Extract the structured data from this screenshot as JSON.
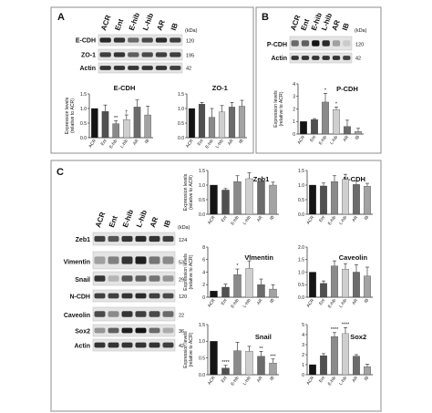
{
  "blot_lanes": [
    "ACR",
    "Ent",
    "E-hib",
    "L-hib",
    "AR",
    "IB"
  ],
  "kda_unit": "(kDa)",
  "ylabel": "Expression levels (relative to ACR)",
  "bar_colors": [
    "#141414",
    "#505050",
    "#8a8a8a",
    "#cfcfcf",
    "#6b6b6b",
    "#a3a3a3"
  ],
  "panel_a": {
    "letter": "A",
    "blots": [
      {
        "name": "E-CDH",
        "kda": "120"
      },
      {
        "name": "ZO-1",
        "kda": "195"
      },
      {
        "name": "Actin",
        "kda": "42"
      }
    ]
  },
  "panel_b": {
    "letter": "B",
    "blots": [
      {
        "name": "P-CDH",
        "kda": "120"
      },
      {
        "name": "Actin",
        "kda": "42"
      }
    ]
  },
  "panel_c": {
    "letter": "C",
    "blots": [
      {
        "name": "Zeb1",
        "kda": "124"
      },
      {
        "name": "Vimentin",
        "kda": "53"
      },
      {
        "name": "Snail",
        "kda": "29"
      },
      {
        "name": "N-CDH",
        "kda": "120"
      },
      {
        "name": "Caveolin",
        "kda": "22"
      },
      {
        "name": "Sox2",
        "kda": "36"
      },
      {
        "name": "Actin",
        "kda": "42"
      }
    ]
  },
  "chart_data": [
    {
      "id": "ecdh",
      "type": "bar",
      "title": "E-CDH",
      "categories": [
        "ACR",
        "Ent",
        "E-hib",
        "L-hib",
        "AR",
        "IB"
      ],
      "values": [
        1.0,
        0.9,
        0.48,
        0.62,
        1.05,
        0.78
      ],
      "errors": [
        0.0,
        0.22,
        0.1,
        0.16,
        0.24,
        0.3
      ],
      "annotations": [
        "",
        "",
        "**",
        "†",
        "",
        ""
      ],
      "ylim": [
        0,
        1.5
      ],
      "yticks": [
        "0.0",
        "0.5",
        "1.0",
        "1.5"
      ],
      "ylabel": "Expression levels (relative to ACR)"
    },
    {
      "id": "zo1",
      "type": "bar",
      "title": "ZO-1",
      "categories": [
        "ACR",
        "Ent",
        "E-hib",
        "L-hib",
        "AR",
        "IB"
      ],
      "values": [
        1.0,
        1.15,
        0.7,
        0.88,
        1.05,
        1.08
      ],
      "errors": [
        0.0,
        0.06,
        0.3,
        0.22,
        0.16,
        0.2
      ],
      "annotations": [
        "",
        "",
        "",
        "",
        "",
        ""
      ],
      "ylim": [
        0,
        1.5
      ],
      "yticks": [
        "0.0",
        "0.5",
        "1.0",
        "1.5"
      ]
    },
    {
      "id": "pcdh",
      "type": "bar",
      "title": "P-CDH",
      "categories": [
        "ACR",
        "Ent",
        "E-hib",
        "L-hib",
        "AR",
        "IB"
      ],
      "values": [
        1.0,
        1.15,
        2.55,
        1.95,
        0.6,
        0.2
      ],
      "errors": [
        0.0,
        0.08,
        0.7,
        0.2,
        0.5,
        0.25
      ],
      "annotations": [
        "",
        "",
        "*",
        "*",
        "",
        ""
      ],
      "ylim": [
        0,
        4
      ],
      "yticks": [
        "0",
        "1",
        "2",
        "3",
        "4"
      ],
      "ylabel": "Expression levels (relative to ACR)"
    },
    {
      "id": "zeb1",
      "type": "bar",
      "title": "Zeb1",
      "categories": [
        "ACR",
        "Ent",
        "E-hib",
        "L-hib",
        "AR",
        "IB"
      ],
      "values": [
        1.0,
        0.83,
        1.12,
        1.22,
        1.12,
        1.0
      ],
      "errors": [
        0.0,
        0.05,
        0.2,
        0.2,
        0.07,
        0.1
      ],
      "annotations": [
        "",
        "",
        "",
        "",
        "",
        ""
      ],
      "ylim": [
        0,
        1.5
      ],
      "yticks": [
        "0.0",
        "0.5",
        "1.0",
        "1.5"
      ],
      "ylabel": "Expression levels (relative to ACR)"
    },
    {
      "id": "ncdh",
      "type": "bar",
      "title": "N-CDH",
      "categories": [
        "ACR",
        "Ent",
        "E-hib",
        "L-hib",
        "AR",
        "IB"
      ],
      "values": [
        1.0,
        0.97,
        1.12,
        1.2,
        1.02,
        0.96
      ],
      "errors": [
        0.0,
        0.1,
        0.2,
        0.17,
        0.12,
        0.1
      ],
      "annotations": [
        "",
        "",
        "",
        "",
        "",
        ""
      ],
      "ylim": [
        0,
        1.5
      ],
      "yticks": [
        "0.0",
        "0.5",
        "1.0",
        "1.5"
      ]
    },
    {
      "id": "vimentin",
      "type": "bar",
      "title": "Vimentin",
      "categories": [
        "ACR",
        "Ent",
        "E-hib",
        "L-hib",
        "AR",
        "IB"
      ],
      "values": [
        1.0,
        1.6,
        3.6,
        4.6,
        2.0,
        1.3
      ],
      "errors": [
        0.0,
        0.5,
        0.9,
        1.2,
        0.9,
        0.7
      ],
      "annotations": [
        "",
        "",
        "*",
        "**",
        "",
        ""
      ],
      "ylim": [
        0,
        8
      ],
      "yticks": [
        "0",
        "2",
        "4",
        "6",
        "8"
      ],
      "ylabel": "Expression levels (relative to ACR)"
    },
    {
      "id": "caveolin",
      "type": "bar",
      "title": "Caveolin",
      "categories": [
        "ACR",
        "Ent",
        "E-hib",
        "L-hib",
        "AR",
        "IB"
      ],
      "values": [
        1.0,
        0.55,
        1.25,
        1.12,
        1.0,
        0.85
      ],
      "errors": [
        0.0,
        0.1,
        0.2,
        0.22,
        0.3,
        0.35
      ],
      "annotations": [
        "",
        "",
        "",
        "",
        "",
        ""
      ],
      "ylim": [
        0,
        2.0
      ],
      "yticks": [
        "0.0",
        "0.5",
        "1.0",
        "1.5",
        "2.0"
      ]
    },
    {
      "id": "snail",
      "type": "bar",
      "title": "Snail",
      "categories": [
        "ACR",
        "Ent",
        "E-hib",
        "L-hib",
        "AR",
        "IB"
      ],
      "values": [
        1.0,
        0.2,
        0.72,
        0.7,
        0.55,
        0.35
      ],
      "errors": [
        0.0,
        0.08,
        0.25,
        0.15,
        0.15,
        0.12
      ],
      "annotations": [
        "",
        "****",
        "",
        "",
        "**",
        "***"
      ],
      "ylim": [
        0,
        1.5
      ],
      "yticks": [
        "0.0",
        "0.5",
        "1.0",
        "1.5"
      ],
      "ylabel": "Expression levels (relative to ACR)"
    },
    {
      "id": "sox2",
      "type": "bar",
      "title": "Sox2",
      "categories": [
        "ACR",
        "Ent",
        "E-hib",
        "L-hib",
        "AR",
        "IB"
      ],
      "values": [
        1.0,
        1.9,
        3.8,
        4.1,
        1.85,
        0.8
      ],
      "errors": [
        0.0,
        0.2,
        0.4,
        0.6,
        0.15,
        0.25
      ],
      "annotations": [
        "",
        "",
        "****",
        "****",
        "",
        ""
      ],
      "ylim": [
        0,
        5
      ],
      "yticks": [
        "0",
        "1",
        "2",
        "3",
        "4",
        "5"
      ]
    }
  ]
}
